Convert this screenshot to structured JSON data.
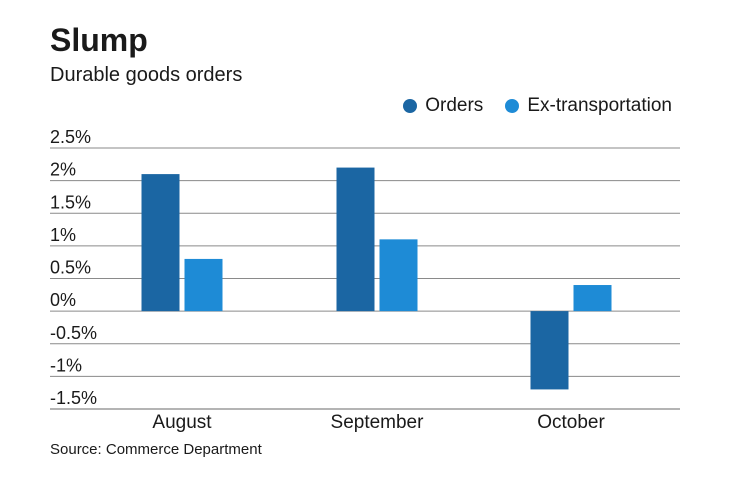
{
  "chart_data": {
    "type": "bar",
    "title": "Slump",
    "subtitle": "Durable goods orders",
    "source": "Source: Commerce Department",
    "categories": [
      "August",
      "September",
      "October"
    ],
    "series": [
      {
        "name": "Orders",
        "color": "#1b66a3",
        "values": [
          2.1,
          2.2,
          -1.2
        ]
      },
      {
        "name": "Ex-transportation",
        "color": "#1e8bd6",
        "values": [
          0.8,
          1.1,
          0.4
        ]
      }
    ],
    "y_ticks": [
      2.5,
      2,
      1.5,
      1,
      0.5,
      0,
      -0.5,
      -1,
      -1.5
    ],
    "y_tick_labels": [
      "2.5%",
      "2%",
      "1.5%",
      "1%",
      "0.5%",
      "0%",
      "-0.5%",
      "-1%",
      "-1.5%"
    ],
    "ylim": [
      -1.5,
      2.5
    ],
    "grid": true,
    "legend_position": "top-right"
  }
}
